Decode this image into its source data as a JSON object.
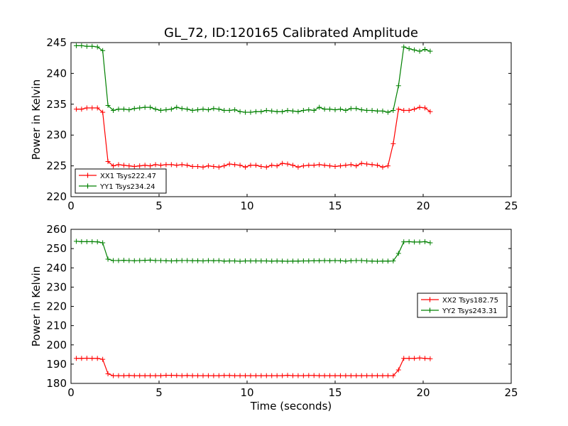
{
  "chart_data": [
    {
      "type": "line",
      "title": "GL_72, ID:120165 Calibrated Amplitude",
      "xlabel": "",
      "ylabel": "Power in Kelvin",
      "xlim": [
        0,
        25
      ],
      "ylim": [
        220,
        245
      ],
      "xticks": [
        0,
        5,
        10,
        15,
        20,
        25
      ],
      "yticks": [
        220,
        225,
        230,
        235,
        240,
        245
      ],
      "legend_position": "lower-left",
      "x": [
        0.3,
        0.6,
        0.9,
        1.2,
        1.5,
        1.8,
        2.1,
        2.4,
        2.7,
        3.0,
        3.3,
        3.6,
        3.9,
        4.2,
        4.5,
        4.8,
        5.1,
        5.4,
        5.7,
        6.0,
        6.3,
        6.6,
        6.9,
        7.2,
        7.5,
        7.8,
        8.1,
        8.4,
        8.7,
        9.0,
        9.3,
        9.6,
        9.9,
        10.2,
        10.5,
        10.8,
        11.1,
        11.4,
        11.7,
        12.0,
        12.3,
        12.6,
        12.9,
        13.2,
        13.5,
        13.8,
        14.1,
        14.4,
        14.7,
        15.0,
        15.3,
        15.6,
        15.9,
        16.2,
        16.5,
        16.8,
        17.1,
        17.4,
        17.7,
        18.0,
        18.3,
        18.6,
        18.9,
        19.2,
        19.5,
        19.8,
        20.1,
        20.4
      ],
      "series": [
        {
          "name": "XX1 Tsys222.47",
          "color": "#ff0000",
          "values": [
            234.2,
            234.2,
            234.4,
            234.4,
            234.4,
            233.7,
            225.7,
            225.0,
            225.2,
            225.1,
            225.0,
            224.9,
            225.0,
            225.1,
            225.0,
            225.2,
            225.1,
            225.2,
            225.2,
            225.1,
            225.2,
            225.1,
            224.9,
            224.9,
            224.8,
            225.0,
            224.9,
            224.8,
            225.0,
            225.3,
            225.2,
            225.1,
            224.8,
            225.1,
            225.1,
            224.9,
            224.8,
            225.1,
            225.0,
            225.4,
            225.3,
            225.1,
            224.8,
            225.0,
            225.1,
            225.1,
            225.2,
            225.1,
            225.0,
            224.9,
            225.0,
            225.1,
            225.2,
            225.0,
            225.4,
            225.3,
            225.2,
            225.1,
            224.8,
            225.0,
            228.6,
            234.2,
            234.0,
            234.0,
            234.2,
            234.5,
            234.4,
            233.8
          ]
        },
        {
          "name": "YY1 Tsys234.24",
          "color": "#008000",
          "values": [
            244.5,
            244.5,
            244.4,
            244.4,
            244.3,
            243.7,
            234.8,
            234.0,
            234.2,
            234.2,
            234.1,
            234.3,
            234.4,
            234.5,
            234.5,
            234.2,
            234.0,
            234.1,
            234.2,
            234.5,
            234.3,
            234.2,
            234.0,
            234.1,
            234.2,
            234.1,
            234.3,
            234.2,
            234.0,
            234.0,
            234.1,
            233.8,
            233.7,
            233.7,
            233.8,
            233.8,
            234.0,
            233.9,
            233.8,
            233.8,
            234.0,
            233.9,
            233.8,
            234.0,
            234.1,
            234.0,
            234.5,
            234.2,
            234.2,
            234.1,
            234.2,
            234.0,
            234.3,
            234.3,
            234.1,
            234.0,
            234.0,
            233.9,
            233.9,
            233.7,
            234.0,
            238.0,
            244.3,
            244.0,
            243.8,
            243.6,
            243.9,
            243.6
          ]
        }
      ]
    },
    {
      "type": "line",
      "title": "",
      "xlabel": "Time (seconds)",
      "ylabel": "Power in Kelvin",
      "xlim": [
        0,
        25
      ],
      "ylim": [
        180,
        260
      ],
      "xticks": [
        0,
        5,
        10,
        15,
        20,
        25
      ],
      "yticks": [
        180,
        190,
        200,
        210,
        220,
        230,
        240,
        250,
        260
      ],
      "legend_position": "center-right",
      "x": [
        0.3,
        0.6,
        0.9,
        1.2,
        1.5,
        1.8,
        2.1,
        2.4,
        2.7,
        3.0,
        3.3,
        3.6,
        3.9,
        4.2,
        4.5,
        4.8,
        5.1,
        5.4,
        5.7,
        6.0,
        6.3,
        6.6,
        6.9,
        7.2,
        7.5,
        7.8,
        8.1,
        8.4,
        8.7,
        9.0,
        9.3,
        9.6,
        9.9,
        10.2,
        10.5,
        10.8,
        11.1,
        11.4,
        11.7,
        12.0,
        12.3,
        12.6,
        12.9,
        13.2,
        13.5,
        13.8,
        14.1,
        14.4,
        14.7,
        15.0,
        15.3,
        15.6,
        15.9,
        16.2,
        16.5,
        16.8,
        17.1,
        17.4,
        17.7,
        18.0,
        18.3,
        18.6,
        18.9,
        19.2,
        19.5,
        19.8,
        20.1,
        20.4
      ],
      "series": [
        {
          "name": "XX2 Tsys182.75",
          "color": "#ff0000",
          "values": [
            193.0,
            193.0,
            193.1,
            193.0,
            193.0,
            192.5,
            185.0,
            184.0,
            184.0,
            184.0,
            184.1,
            184.0,
            184.0,
            184.0,
            184.0,
            184.0,
            184.0,
            184.2,
            184.2,
            184.1,
            184.0,
            184.1,
            184.0,
            184.0,
            184.0,
            184.0,
            184.0,
            184.0,
            184.1,
            184.1,
            184.0,
            184.0,
            184.0,
            184.0,
            184.0,
            184.0,
            184.0,
            184.0,
            184.0,
            184.0,
            184.2,
            184.0,
            184.0,
            184.0,
            184.1,
            184.1,
            184.0,
            184.0,
            184.0,
            184.0,
            184.0,
            184.0,
            184.0,
            184.0,
            184.0,
            184.0,
            184.0,
            184.0,
            184.0,
            184.0,
            184.0,
            187.0,
            193.0,
            193.0,
            193.0,
            193.2,
            193.0,
            192.8
          ]
        },
        {
          "name": "YY2 Tsys243.31",
          "color": "#008000",
          "values": [
            253.8,
            253.6,
            253.6,
            253.6,
            253.5,
            253.0,
            244.5,
            243.8,
            243.8,
            243.9,
            243.8,
            243.7,
            243.8,
            243.9,
            244.0,
            243.8,
            243.8,
            243.7,
            243.6,
            243.7,
            243.8,
            243.8,
            243.7,
            243.7,
            243.6,
            243.8,
            243.7,
            243.8,
            243.5,
            243.6,
            243.6,
            243.4,
            243.6,
            243.6,
            243.6,
            243.6,
            243.6,
            243.5,
            243.6,
            243.5,
            243.4,
            243.5,
            243.5,
            243.6,
            243.6,
            243.7,
            243.7,
            243.8,
            243.7,
            243.8,
            243.7,
            243.5,
            243.7,
            243.8,
            243.8,
            243.6,
            243.5,
            243.4,
            243.5,
            243.5,
            243.6,
            247.5,
            253.5,
            253.6,
            253.4,
            253.4,
            253.6,
            253.0
          ]
        }
      ]
    }
  ]
}
